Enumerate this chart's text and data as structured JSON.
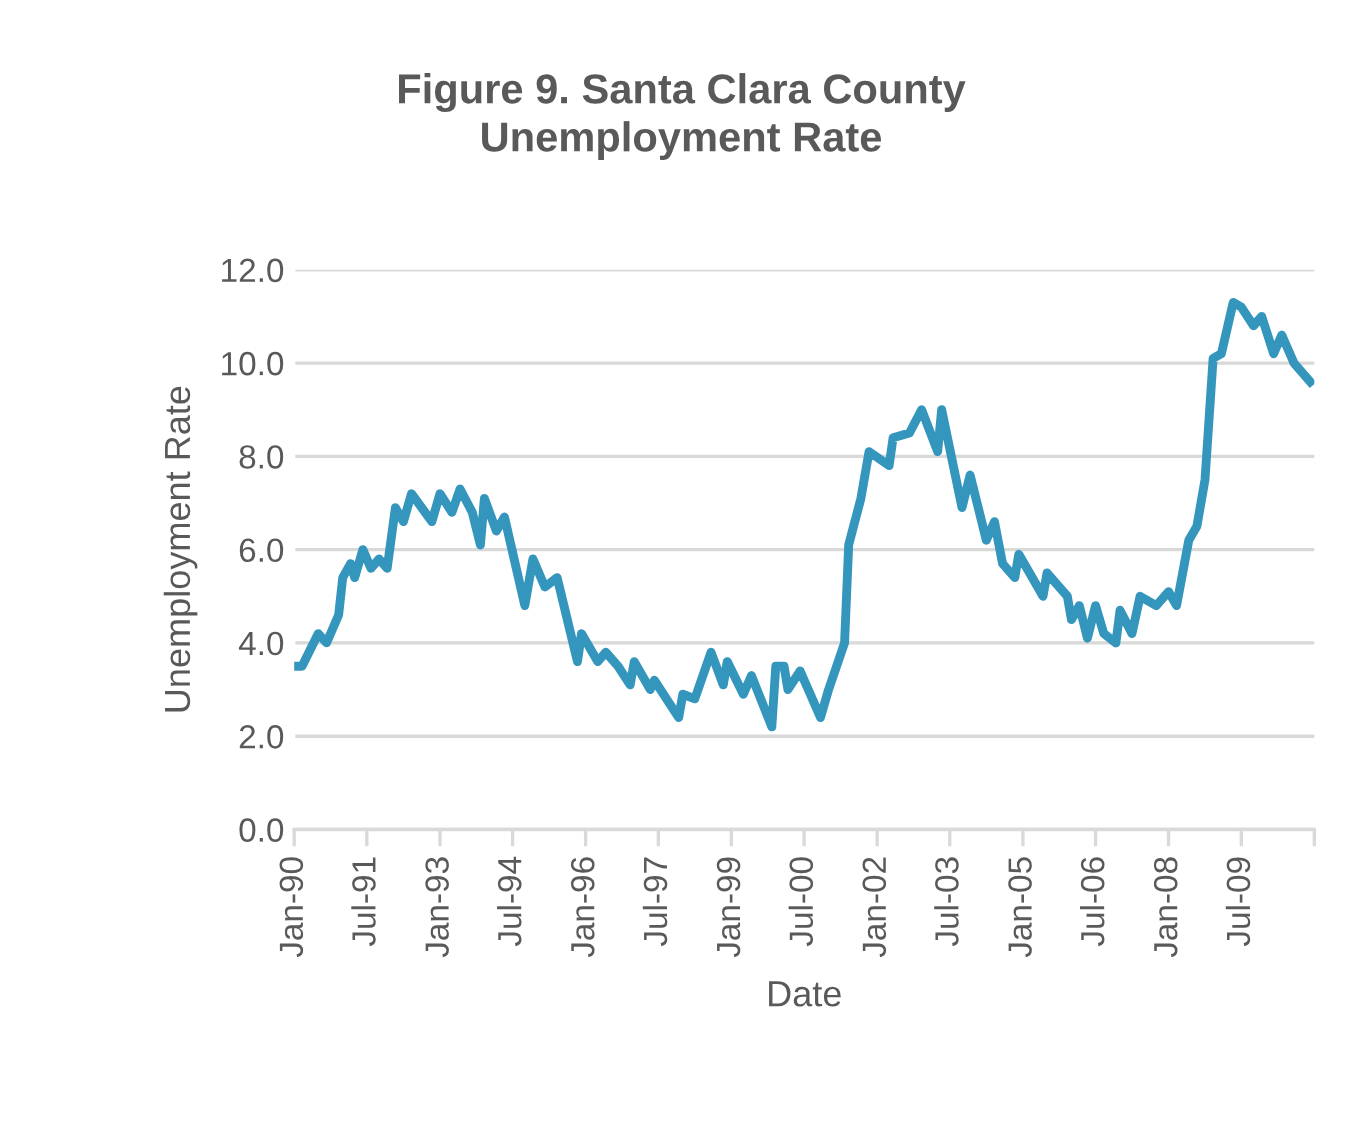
{
  "chart_data": {
    "type": "line",
    "title": "Figure 9. Santa Clara County\nUnemployment Rate",
    "xlabel": "Date",
    "ylabel": "Unemployment Rate",
    "x": [
      "1990-01",
      "1990-03",
      "1990-07",
      "1990-09",
      "1990-12",
      "1991-01",
      "1991-03",
      "1991-04",
      "1991-06",
      "1991-08",
      "1991-10",
      "1991-12",
      "1992-02",
      "1992-04",
      "1992-06",
      "1992-11",
      "1993-01",
      "1993-04",
      "1993-06",
      "1993-09",
      "1993-11",
      "1993-12",
      "1994-03",
      "1994-05",
      "1994-10",
      "1994-12",
      "1995-03",
      "1995-06",
      "1995-11",
      "1995-12",
      "1996-04",
      "1996-06",
      "1996-09",
      "1996-12",
      "1997-01",
      "1997-05",
      "1997-06",
      "1997-12",
      "1998-01",
      "1998-04",
      "1998-08",
      "1998-11",
      "1998-12",
      "1999-04",
      "1999-06",
      "1999-11",
      "1999-12",
      "2000-02",
      "2000-03",
      "2000-06",
      "2000-11",
      "2001-01",
      "2001-05",
      "2001-06",
      "2001-09",
      "2001-11",
      "2002-04",
      "2002-05",
      "2002-09",
      "2002-12",
      "2003-04",
      "2003-05",
      "2003-10",
      "2003-12",
      "2004-04",
      "2004-06",
      "2004-08",
      "2004-11",
      "2004-12",
      "2005-06",
      "2005-07",
      "2005-10",
      "2005-12",
      "2006-01",
      "2006-03",
      "2006-05",
      "2006-07",
      "2006-09",
      "2006-12",
      "2007-01",
      "2007-04",
      "2007-06",
      "2007-10",
      "2008-01",
      "2008-03",
      "2008-06",
      "2008-08",
      "2008-10",
      "2008-12",
      "2009-02",
      "2009-05",
      "2009-07",
      "2009-10",
      "2009-12",
      "2010-03",
      "2010-05",
      "2010-08",
      "2010-12"
    ],
    "series": [
      {
        "color": "#3596bd",
        "values": [
          3.5,
          3.5,
          4.2,
          4.0,
          4.6,
          5.4,
          5.7,
          5.4,
          6.0,
          5.6,
          5.8,
          5.6,
          6.9,
          6.6,
          7.2,
          6.6,
          7.2,
          6.8,
          7.3,
          6.8,
          6.1,
          7.1,
          6.4,
          6.7,
          4.8,
          5.8,
          5.2,
          5.4,
          3.6,
          4.2,
          3.6,
          3.8,
          3.5,
          3.1,
          3.6,
          3.0,
          3.2,
          2.4,
          2.9,
          2.8,
          3.8,
          3.1,
          3.6,
          2.9,
          3.3,
          2.2,
          3.5,
          3.5,
          3.0,
          3.4,
          2.4,
          3.0,
          4.0,
          6.1,
          7.1,
          8.1,
          7.8,
          8.4,
          8.5,
          9.0,
          8.1,
          9.0,
          6.9,
          7.6,
          6.2,
          6.6,
          5.7,
          5.4,
          5.9,
          5.0,
          5.5,
          5.2,
          5.0,
          4.5,
          4.8,
          4.1,
          4.8,
          4.2,
          4.0,
          4.7,
          4.2,
          5.0,
          4.8,
          5.1,
          4.8,
          6.2,
          6.5,
          7.5,
          10.1,
          10.2,
          11.3,
          11.2,
          10.8,
          11.0,
          10.2,
          10.6,
          10.0,
          9.6
        ]
      }
    ],
    "xlim": [
      "1990-01",
      "2011-01"
    ],
    "xticks": [
      {
        "value": "1990-01",
        "label": "Jan-90"
      },
      {
        "value": "1991-07",
        "label": "Jul-91"
      },
      {
        "value": "1993-01",
        "label": "Jan-93"
      },
      {
        "value": "1994-07",
        "label": "Jul-94"
      },
      {
        "value": "1996-01",
        "label": "Jan-96"
      },
      {
        "value": "1997-07",
        "label": "Jul-97"
      },
      {
        "value": "1999-01",
        "label": "Jan-99"
      },
      {
        "value": "2000-07",
        "label": "Jul-00"
      },
      {
        "value": "2002-01",
        "label": "Jan-02"
      },
      {
        "value": "2003-07",
        "label": "Jul-03"
      },
      {
        "value": "2005-01",
        "label": "Jan-05"
      },
      {
        "value": "2006-07",
        "label": "Jul-06"
      },
      {
        "value": "2008-01",
        "label": "Jan-08"
      },
      {
        "value": "2009-07",
        "label": "Jul-09"
      },
      {
        "value": "2011-01",
        "label": null
      }
    ],
    "ylim": [
      0,
      12
    ],
    "yticks": [
      {
        "value": 0,
        "label": "0.0"
      },
      {
        "value": 2,
        "label": "2.0"
      },
      {
        "value": 4,
        "label": "4.0"
      },
      {
        "value": 6,
        "label": "6.0"
      },
      {
        "value": 8,
        "label": "8.0"
      },
      {
        "value": 10,
        "label": "10.0"
      },
      {
        "value": 12,
        "label": "12.0"
      }
    ],
    "grid": "y",
    "marker": "none",
    "line_style": "solid"
  }
}
